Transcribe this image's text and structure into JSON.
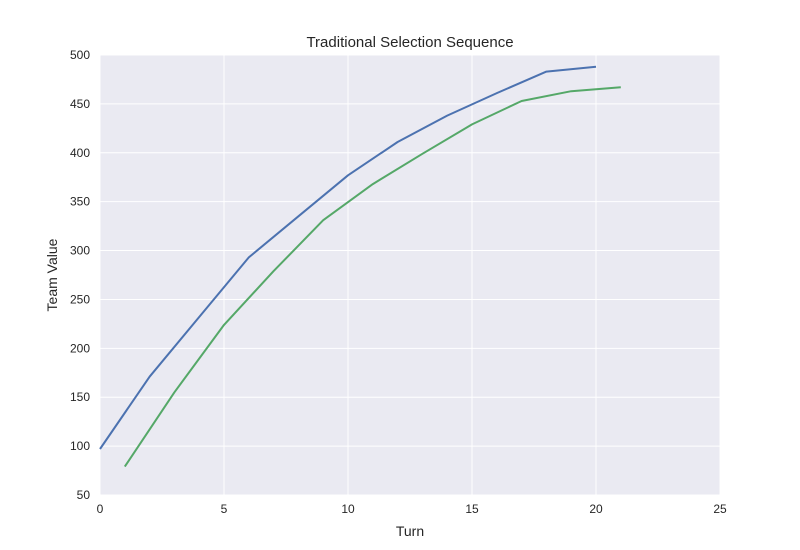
{
  "chart_data": {
    "type": "line",
    "title": "Traditional Selection Sequence",
    "xlabel": "Turn",
    "ylabel": "Team Value",
    "xlim": [
      0,
      25
    ],
    "ylim": [
      50,
      500
    ],
    "xticks": [
      0,
      5,
      10,
      15,
      20,
      25
    ],
    "yticks": [
      50,
      100,
      150,
      200,
      250,
      300,
      350,
      400,
      450,
      500
    ],
    "grid": true,
    "legend": "none",
    "background": "#eaeaf2",
    "series": [
      {
        "color": "#4c72b0",
        "x": [
          0,
          2,
          4,
          6,
          8,
          10,
          12,
          14,
          16,
          18,
          20
        ],
        "y": [
          97,
          171,
          232,
          293,
          335,
          377,
          411,
          438,
          461,
          483,
          488
        ]
      },
      {
        "color": "#55a868",
        "x": [
          1,
          3,
          5,
          7,
          9,
          11,
          13,
          15,
          17,
          19,
          21
        ],
        "y": [
          79,
          155,
          224,
          279,
          331,
          368,
          399,
          429,
          453,
          463,
          467
        ]
      }
    ]
  }
}
